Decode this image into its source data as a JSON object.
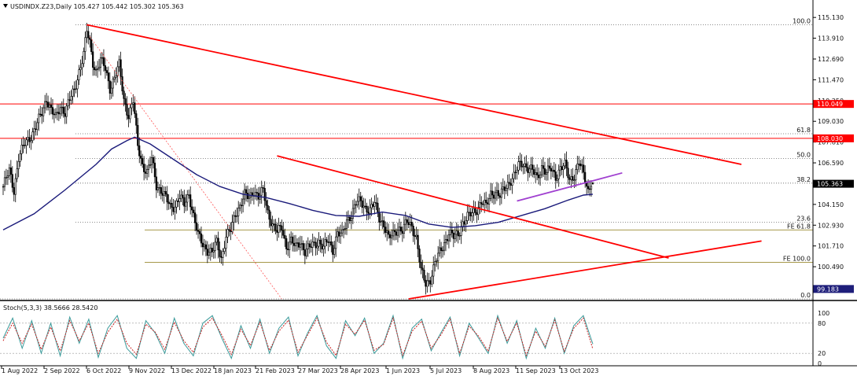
{
  "header": {
    "symbol_line": "USDINDX.Z23,Daily  105.427 105.442 105.302 105.363"
  },
  "oscillator": {
    "title": "Stoch(5,3,3) 38.5666 28.5420",
    "k": 38.5666,
    "d": 28.542,
    "y_ticks": [
      "100",
      "80",
      "20",
      "0"
    ]
  },
  "price_tags": [
    {
      "value": "110.049",
      "color": "#ff0000"
    },
    {
      "value": "108.030",
      "color": "#ff0000"
    },
    {
      "value": "105.363",
      "color": "#000000"
    },
    {
      "value": "99.183",
      "color": "#1e1e7a"
    }
  ],
  "fib_labels": {
    "retracement": [
      "100.0",
      "61.8",
      "50.0",
      "38.2",
      "23.6",
      "0.0"
    ],
    "expansion": [
      "FE 61.8",
      "FE 100.0"
    ]
  },
  "colors": {
    "candle": "#000000",
    "trendline": "#ff0000",
    "ma": "#1a1a7a",
    "wedge": "#a040d0",
    "fib": "#666666",
    "fe": "#9a8a30",
    "stoch_k": "#3a9a9a",
    "stoch_d": "#cc2222"
  },
  "chart_data": {
    "type": "candlestick",
    "instrument": "USDINDX.Z23",
    "timeframe": "Daily",
    "last": {
      "open": 105.427,
      "high": 105.442,
      "low": 105.302,
      "close": 105.363
    },
    "y_ticks": [
      "115.130",
      "113.910",
      "112.690",
      "111.470",
      "110.250",
      "109.030",
      "107.810",
      "106.590",
      "105.370",
      "104.150",
      "102.930",
      "101.710",
      "100.490"
    ],
    "ylim": [
      98.6,
      115.6
    ],
    "x_ticks": [
      "1 Aug 2022",
      "2 Sep 2022",
      "6 Oct 2022",
      "9 Nov 2022",
      "13 Dec 2022",
      "18 Jan 2023",
      "21 Feb 2023",
      "27 Mar 2023",
      "28 Apr 2023",
      "1 Jun 2023",
      "5 Jul 2023",
      "8 Aug 2023",
      "11 Sep 2023",
      "13 Oct 2023"
    ],
    "horizontal_levels": [
      110.049,
      108.03
    ],
    "fib_levels": [
      114.7,
      108.3,
      106.85,
      105.4,
      103.1,
      98.6
    ],
    "fe_levels": [
      102.65,
      100.75
    ],
    "close_path": [
      [
        0,
        105.2
      ],
      [
        4,
        106.1
      ],
      [
        7,
        105.0
      ],
      [
        10,
        106.9
      ],
      [
        14,
        107.7
      ],
      [
        18,
        108.2
      ],
      [
        21,
        108.7
      ],
      [
        25,
        109.5
      ],
      [
        28,
        110.4
      ],
      [
        31,
        109.7
      ],
      [
        34,
        109.2
      ],
      [
        37,
        109.9
      ],
      [
        40,
        109.6
      ],
      [
        43,
        110.3
      ],
      [
        46,
        110.8
      ],
      [
        49,
        112.0
      ],
      [
        52,
        113.0
      ],
      [
        54,
        114.3
      ],
      [
        56,
        113.6
      ],
      [
        58,
        112.5
      ],
      [
        60,
        112.0
      ],
      [
        63,
        112.6
      ],
      [
        66,
        112.1
      ],
      [
        69,
        111.0
      ],
      [
        72,
        111.6
      ],
      [
        75,
        112.3
      ],
      [
        78,
        110.3
      ],
      [
        81,
        109.4
      ],
      [
        84,
        110.2
      ],
      [
        87,
        107.6
      ],
      [
        90,
        106.5
      ],
      [
        93,
        106.0
      ],
      [
        96,
        106.8
      ],
      [
        99,
        105.3
      ],
      [
        102,
        105.0
      ],
      [
        105,
        104.5
      ],
      [
        108,
        104.0
      ],
      [
        111,
        104.1
      ],
      [
        114,
        104.6
      ],
      [
        117,
        104.1
      ],
      [
        120,
        104.8
      ],
      [
        123,
        103.5
      ],
      [
        126,
        102.3
      ],
      [
        129,
        101.8
      ],
      [
        132,
        101.5
      ],
      [
        135,
        101.3
      ],
      [
        138,
        101.9
      ],
      [
        141,
        101.0
      ],
      [
        144,
        102.3
      ],
      [
        147,
        102.6
      ],
      [
        150,
        103.6
      ],
      [
        153,
        104.1
      ],
      [
        156,
        104.7
      ],
      [
        159,
        104.5
      ],
      [
        162,
        105.0
      ],
      [
        165,
        104.6
      ],
      [
        168,
        104.9
      ],
      [
        171,
        103.7
      ],
      [
        174,
        103.0
      ],
      [
        177,
        102.5
      ],
      [
        180,
        102.8
      ],
      [
        183,
        101.7
      ],
      [
        186,
        102.0
      ],
      [
        189,
        101.6
      ],
      [
        192,
        102.0
      ],
      [
        195,
        101.4
      ],
      [
        198,
        101.6
      ],
      [
        201,
        101.8
      ],
      [
        204,
        102.0
      ],
      [
        207,
        101.6
      ],
      [
        210,
        102.0
      ],
      [
        213,
        101.5
      ],
      [
        216,
        102.5
      ],
      [
        219,
        102.3
      ],
      [
        222,
        103.2
      ],
      [
        225,
        103.6
      ],
      [
        228,
        104.2
      ],
      [
        231,
        104.3
      ],
      [
        234,
        104.0
      ],
      [
        237,
        103.8
      ],
      [
        240,
        104.2
      ],
      [
        243,
        103.4
      ],
      [
        246,
        103.0
      ],
      [
        249,
        102.1
      ],
      [
        252,
        102.4
      ],
      [
        255,
        102.8
      ],
      [
        258,
        102.6
      ],
      [
        261,
        103.1
      ],
      [
        264,
        102.9
      ],
      [
        267,
        102.2
      ],
      [
        270,
        100.2
      ],
      [
        273,
        99.5
      ],
      [
        276,
        99.8
      ],
      [
        279,
        100.7
      ],
      [
        282,
        101.3
      ],
      [
        285,
        101.9
      ],
      [
        288,
        102.5
      ],
      [
        291,
        102.2
      ],
      [
        294,
        102.4
      ],
      [
        297,
        103.1
      ],
      [
        300,
        103.4
      ],
      [
        303,
        103.6
      ],
      [
        306,
        103.9
      ],
      [
        309,
        104.3
      ],
      [
        312,
        104.0
      ],
      [
        315,
        104.8
      ],
      [
        318,
        104.9
      ],
      [
        321,
        104.6
      ],
      [
        324,
        105.1
      ],
      [
        327,
        105.5
      ],
      [
        330,
        105.8
      ],
      [
        333,
        106.4
      ],
      [
        336,
        106.6
      ],
      [
        339,
        106.3
      ],
      [
        342,
        106.1
      ],
      [
        345,
        105.7
      ],
      [
        348,
        106.4
      ],
      [
        351,
        106.0
      ],
      [
        354,
        106.2
      ],
      [
        357,
        105.8
      ],
      [
        360,
        106.3
      ],
      [
        363,
        106.4
      ],
      [
        366,
        105.6
      ],
      [
        369,
        105.9
      ],
      [
        372,
        106.6
      ],
      [
        375,
        105.9
      ],
      [
        378,
        105.0
      ],
      [
        380,
        105.5
      ],
      [
        381,
        105.363
      ]
    ],
    "moving_average": [
      [
        0,
        102.65
      ],
      [
        20,
        103.6
      ],
      [
        40,
        105.0
      ],
      [
        60,
        106.5
      ],
      [
        70,
        107.4
      ],
      [
        80,
        107.9
      ],
      [
        85,
        108.1
      ],
      [
        95,
        107.7
      ],
      [
        110,
        106.8
      ],
      [
        125,
        105.9
      ],
      [
        140,
        105.2
      ],
      [
        155,
        104.75
      ],
      [
        170,
        104.55
      ],
      [
        185,
        104.2
      ],
      [
        200,
        103.8
      ],
      [
        215,
        103.5
      ],
      [
        230,
        103.45
      ],
      [
        245,
        103.7
      ],
      [
        260,
        103.5
      ],
      [
        275,
        103.0
      ],
      [
        290,
        102.8
      ],
      [
        305,
        102.9
      ],
      [
        320,
        103.1
      ],
      [
        335,
        103.5
      ],
      [
        350,
        103.9
      ],
      [
        365,
        104.4
      ],
      [
        375,
        104.7
      ],
      [
        381,
        104.75
      ]
    ],
    "stochastic": {
      "k": [
        50,
        90,
        30,
        85,
        20,
        80,
        15,
        92,
        40,
        88,
        12,
        70,
        95,
        30,
        10,
        85,
        60,
        20,
        90,
        40,
        15,
        80,
        95,
        50,
        10,
        75,
        30,
        88,
        20,
        70,
        92,
        15,
        60,
        95,
        35,
        10,
        85,
        55,
        90,
        20,
        40,
        95,
        10,
        70,
        88,
        25,
        60,
        92,
        15,
        80,
        50,
        20,
        95,
        40,
        85,
        10,
        70,
        30,
        90,
        20,
        75,
        95,
        38.5666
      ],
      "d": [
        45,
        80,
        40,
        78,
        28,
        72,
        25,
        85,
        45,
        80,
        20,
        62,
        88,
        40,
        18,
        78,
        62,
        28,
        82,
        45,
        22,
        72,
        90,
        56,
        18,
        68,
        36,
        82,
        26,
        64,
        86,
        22,
        56,
        90,
        42,
        16,
        78,
        58,
        86,
        26,
        38,
        90,
        16,
        64,
        84,
        30,
        56,
        88,
        20,
        74,
        54,
        24,
        90,
        44,
        80,
        16,
        64,
        34,
        86,
        24,
        70,
        90,
        28.542
      ]
    }
  }
}
